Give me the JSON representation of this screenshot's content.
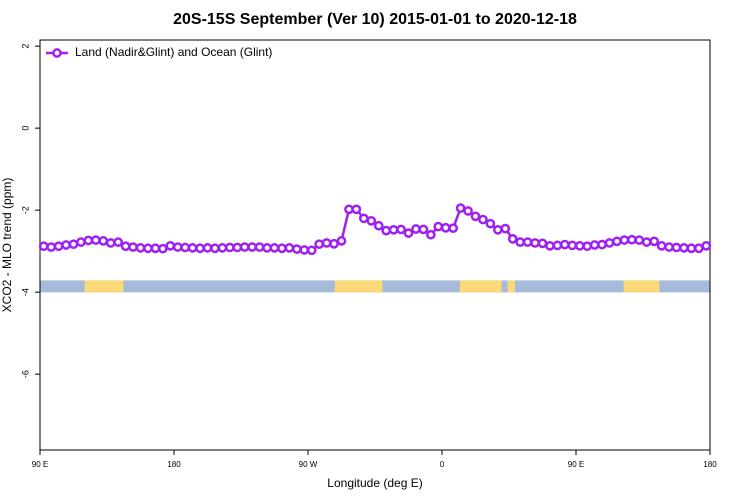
{
  "chart_data": {
    "type": "line",
    "title": "20S-15S September (Ver 10)   2015-01-01 to 2020-12-18",
    "xlabel": "Longitude (deg E)",
    "ylabel": "XCO2 - MLO trend (ppm)",
    "xlim": [
      90,
      540
    ],
    "ylim": [
      -7.85,
      2.15
    ],
    "xticks": [
      {
        "value": 90,
        "label": "90 E"
      },
      180,
      {
        "value": 270,
        "label": "90 W"
      },
      {
        "value": 360,
        "label": "0"
      },
      {
        "value": 450,
        "label": "90 E"
      },
      {
        "value": 540,
        "label": "180"
      }
    ],
    "yticks": [
      2,
      0,
      -2,
      -4,
      -6
    ],
    "legend": "upper left",
    "x": [
      92.5,
      97.5,
      102.5,
      107.5,
      112.5,
      117.5,
      122.5,
      127.5,
      132.5,
      137.5,
      142.5,
      147.5,
      152.5,
      157.5,
      162.5,
      167.5,
      172.5,
      177.5,
      182.5,
      187.5,
      192.5,
      197.5,
      202.5,
      207.5,
      212.5,
      217.5,
      222.5,
      227.5,
      232.5,
      237.5,
      242.5,
      247.5,
      252.5,
      257.5,
      262.5,
      267.5,
      272.5,
      277.5,
      282.5,
      287.5,
      292.5,
      297.5,
      302.5,
      307.5,
      312.5,
      317.5,
      322.5,
      327.5,
      332.5,
      337.5,
      342.5,
      347.5,
      352.5,
      357.5,
      362.5,
      367.5,
      372.5,
      377.5,
      382.5,
      387.5,
      392.5,
      397.5,
      402.5,
      407.5,
      412.5,
      417.5,
      422.5,
      427.5,
      432.5,
      437.5,
      442.5,
      447.5,
      452.5,
      457.5,
      462.5,
      467.5,
      472.5,
      477.5,
      482.5,
      487.5,
      492.5,
      497.5,
      502.5,
      507.5,
      512.5,
      517.5,
      522.5,
      527.5,
      532.5,
      537.5
    ],
    "series": [
      {
        "name": "Land (Nadir&Glint) and Ocean (Glint)",
        "color": "#a020f0",
        "values": [
          -2.88,
          -2.9,
          -2.88,
          -2.85,
          -2.83,
          -2.78,
          -2.74,
          -2.73,
          -2.75,
          -2.8,
          -2.78,
          -2.88,
          -2.9,
          -2.92,
          -2.93,
          -2.93,
          -2.94,
          -2.87,
          -2.9,
          -2.91,
          -2.92,
          -2.93,
          -2.92,
          -2.93,
          -2.92,
          -2.91,
          -2.91,
          -2.9,
          -2.9,
          -2.9,
          -2.92,
          -2.92,
          -2.93,
          -2.92,
          -2.95,
          -2.97,
          -2.98,
          -2.83,
          -2.8,
          -2.82,
          -2.75,
          -1.98,
          -1.98,
          -2.2,
          -2.26,
          -2.38,
          -2.5,
          -2.48,
          -2.47,
          -2.56,
          -2.46,
          -2.47,
          -2.6,
          -2.4,
          -2.43,
          -2.44,
          -1.95,
          -2.02,
          -2.15,
          -2.23,
          -2.33,
          -2.48,
          -2.45,
          -2.7,
          -2.78,
          -2.78,
          -2.8,
          -2.81,
          -2.87,
          -2.86,
          -2.84,
          -2.86,
          -2.87,
          -2.88,
          -2.85,
          -2.84,
          -2.8,
          -2.76,
          -2.73,
          -2.72,
          -2.73,
          -2.78,
          -2.76,
          -2.87,
          -2.9,
          -2.91,
          -2.92,
          -2.93,
          -2.93,
          -2.87
        ]
      }
    ],
    "band_level": -3.86,
    "ocean_color": "#a6bbda",
    "land_color": "#fbd978",
    "land_segments": [
      [
        120,
        146
      ],
      [
        288,
        320
      ],
      [
        372,
        400
      ],
      [
        404,
        409
      ],
      [
        482,
        506
      ]
    ]
  }
}
